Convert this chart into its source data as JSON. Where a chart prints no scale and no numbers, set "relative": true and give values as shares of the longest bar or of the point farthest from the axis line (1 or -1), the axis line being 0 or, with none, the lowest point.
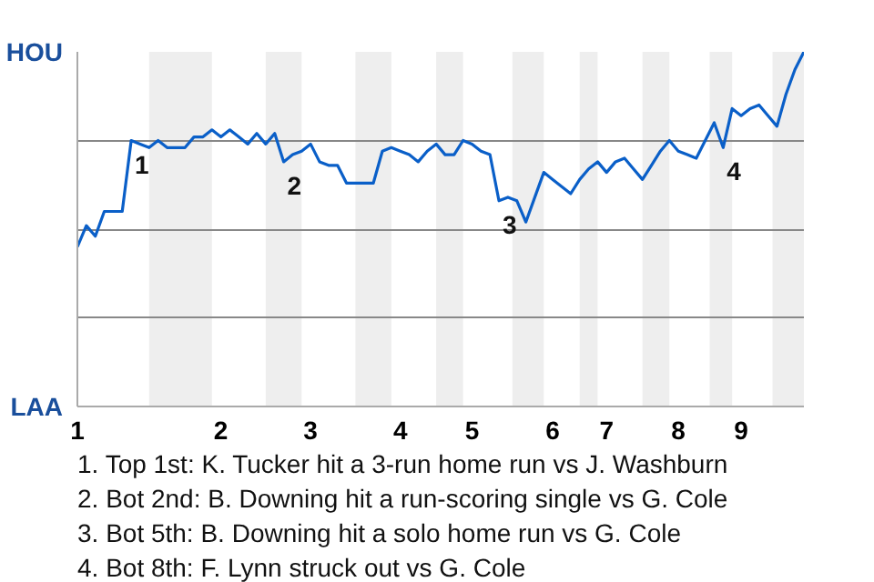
{
  "chart_data": {
    "type": "line",
    "relative": true,
    "categories": [
      "1",
      null,
      null,
      null,
      null,
      null,
      null,
      null,
      null,
      null,
      null,
      null,
      null,
      null,
      null,
      null,
      "2",
      null,
      null,
      null,
      null,
      null,
      null,
      null,
      null,
      null,
      "3",
      null,
      null,
      null,
      null,
      null,
      null,
      null,
      null,
      null,
      "4",
      null,
      null,
      null,
      null,
      null,
      null,
      null,
      "5",
      null,
      null,
      null,
      null,
      null,
      null,
      null,
      null,
      "6",
      null,
      null,
      null,
      null,
      null,
      "7",
      null,
      null,
      null,
      null,
      null,
      null,
      null,
      "8",
      null,
      null,
      null,
      null,
      null,
      null,
      "9",
      null,
      null,
      null,
      null,
      null,
      null,
      null
    ],
    "series": [
      {
        "color": "#0a5fc8",
        "values": [
          0.45,
          0.51,
          0.48,
          0.55,
          0.55,
          0.55,
          0.75,
          0.74,
          0.73,
          0.75,
          0.73,
          0.73,
          0.73,
          0.76,
          0.76,
          0.78,
          0.76,
          0.78,
          0.76,
          0.74,
          0.77,
          0.74,
          0.77,
          0.69,
          0.71,
          0.72,
          0.74,
          0.69,
          0.68,
          0.68,
          0.63,
          0.63,
          0.63,
          0.63,
          0.72,
          0.73,
          0.72,
          0.71,
          0.69,
          0.72,
          0.74,
          0.71,
          0.71,
          0.75,
          0.74,
          0.72,
          0.71,
          0.58,
          0.59,
          0.58,
          0.52,
          0.59,
          0.66,
          0.64,
          0.62,
          0.6,
          0.64,
          0.67,
          0.69,
          0.66,
          0.69,
          0.7,
          0.67,
          0.64,
          0.68,
          0.72,
          0.75,
          0.72,
          0.71,
          0.7,
          0.75,
          0.8,
          0.73,
          0.84,
          0.82,
          0.84,
          0.85,
          0.82,
          0.79,
          0.88,
          0.95,
          1.0
        ]
      }
    ],
    "grid": "y",
    "line_style": "solid",
    "annotations": [
      "HOU",
      "LAA",
      {
        "text": "1",
        "y": 0.75
      },
      {
        "text": "2",
        "y": 0.69
      },
      {
        "text": "3",
        "y": 0.58
      },
      {
        "text": "4",
        "y": 0.73
      },
      "1. Top 1st: K. Tucker hit a 3-run home run vs J. Washburn",
      "2. Bot 2nd: B. Downing hit a run-scoring single vs G. Cole",
      "3. Bot 5th: B. Downing hit a solo home run vs G. Cole",
      "4. Bot 8th: F. Lynn struck out vs G. Cole"
    ]
  }
}
